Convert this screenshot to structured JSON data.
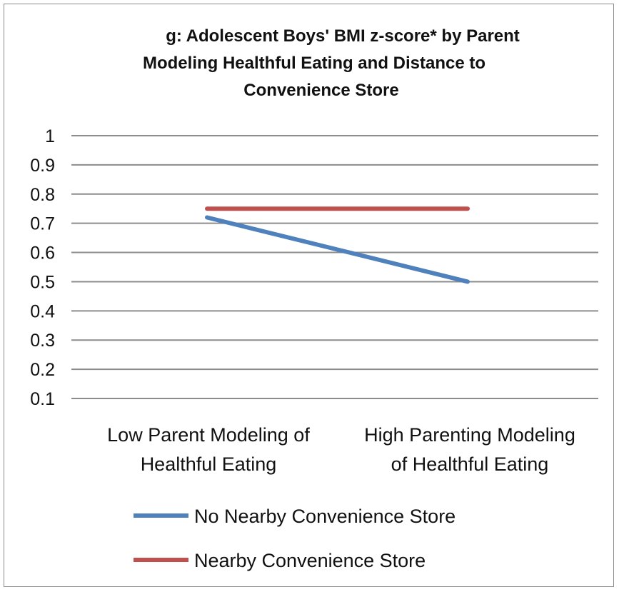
{
  "chart_data": {
    "type": "line",
    "title_lines": [
      "g: Adolescent  Boys' BMI z-score* by Parent",
      "Modeling  Healthful Eating and Distance to",
      "Convenience  Store"
    ],
    "categories": [
      [
        "Low Parent Modeling of",
        "Healthful Eating"
      ],
      [
        "High Parenting Modeling",
        "of Healthful Eating"
      ]
    ],
    "series": [
      {
        "name": "No Nearby Convenience Store",
        "values": [
          0.72,
          0.5
        ],
        "color": "#4f81bd"
      },
      {
        "name": "Nearby Convenience Store",
        "values": [
          0.75,
          0.75
        ],
        "color": "#c0504d"
      }
    ],
    "y_ticks": [
      "1",
      "0.9",
      "0.8",
      "0.7",
      "0.6",
      "0.5",
      "0.4",
      "0.3",
      "0.2",
      "0.1"
    ],
    "ylim": [
      0.1,
      1
    ],
    "grid": true,
    "legend_position": "bottom"
  }
}
